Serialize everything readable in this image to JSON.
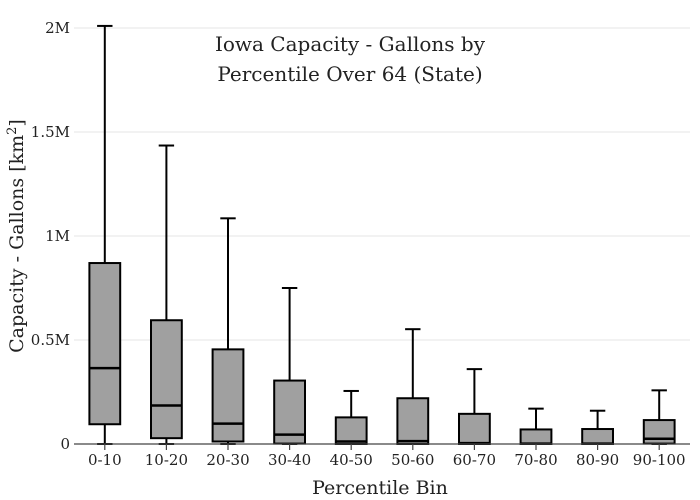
{
  "chart_data": {
    "type": "box",
    "title_line1": "Iowa Capacity - Gallons by",
    "title_line2": "Percentile Over 64 (State)",
    "xlabel": "Percentile Bin",
    "ylabel_main": "Capacity - Gallons  [km",
    "ylabel_sup": "2",
    "ylabel_end": "]",
    "ylim": [
      0,
      2000000
    ],
    "yticks": [
      {
        "value": 0,
        "label": "0"
      },
      {
        "value": 500000,
        "label": "0.5M"
      },
      {
        "value": 1000000,
        "label": "1M"
      },
      {
        "value": 1500000,
        "label": "1.5M"
      },
      {
        "value": 2000000,
        "label": "2M"
      }
    ],
    "grid": true,
    "categories": [
      "0-10",
      "10-20",
      "20-30",
      "30-40",
      "40-50",
      "50-60",
      "60-70",
      "70-80",
      "80-90",
      "90-100"
    ],
    "boxes": [
      {
        "min": 0,
        "q1": 95000,
        "median": 365000,
        "q3": 870000,
        "max": 2010000
      },
      {
        "min": 0,
        "q1": 28000,
        "median": 185000,
        "q3": 595000,
        "max": 1435000
      },
      {
        "min": 0,
        "q1": 12000,
        "median": 98000,
        "q3": 455000,
        "max": 1085000
      },
      {
        "min": 0,
        "q1": 2000,
        "median": 45000,
        "q3": 305000,
        "max": 750000
      },
      {
        "min": 0,
        "q1": 0,
        "median": 12000,
        "q3": 128000,
        "max": 255000
      },
      {
        "min": 0,
        "q1": 0,
        "median": 14000,
        "q3": 220000,
        "max": 552000
      },
      {
        "min": 0,
        "q1": 0,
        "median": 4000,
        "q3": 145000,
        "max": 360000
      },
      {
        "min": 0,
        "q1": 0,
        "median": 2000,
        "q3": 70000,
        "max": 170000
      },
      {
        "min": 0,
        "q1": 0,
        "median": 2000,
        "q3": 72000,
        "max": 160000
      },
      {
        "min": 0,
        "q1": 2000,
        "median": 25000,
        "q3": 115000,
        "max": 258000
      }
    ]
  }
}
